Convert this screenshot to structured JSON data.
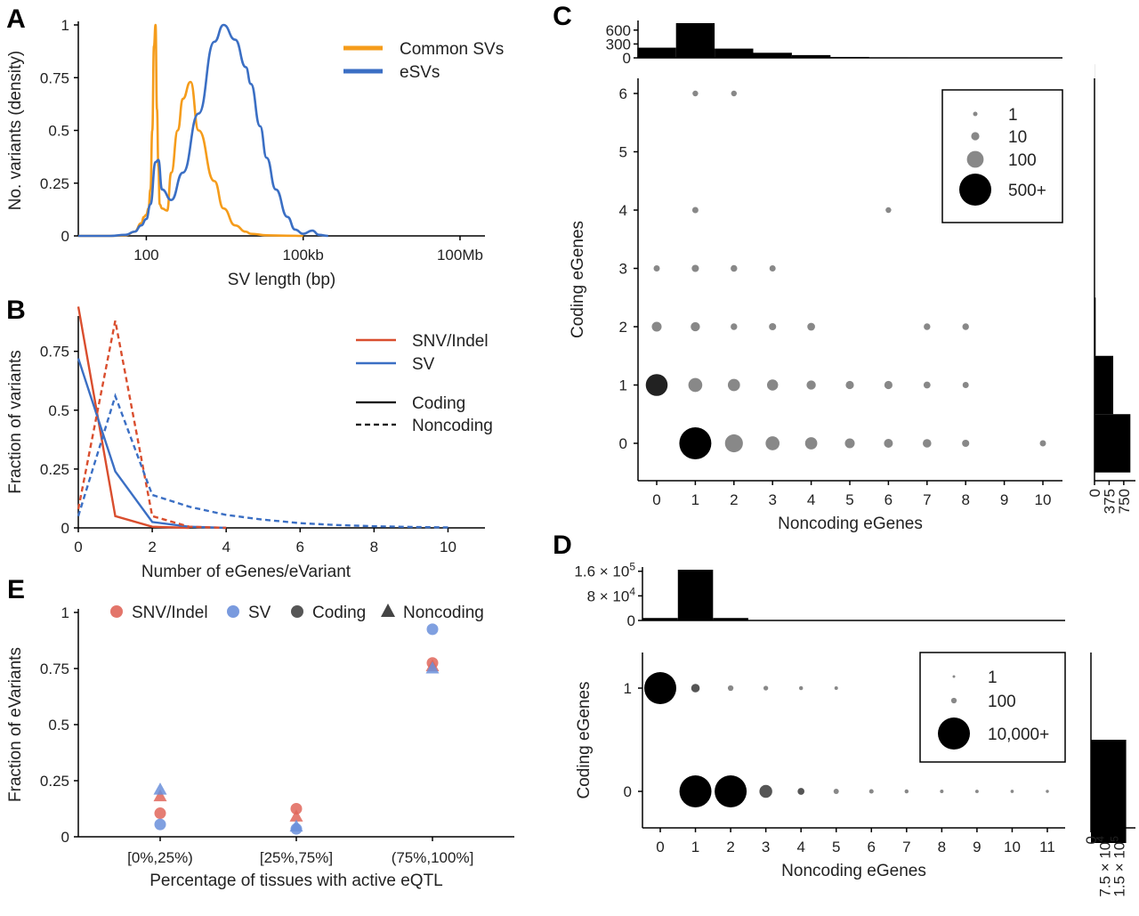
{
  "panels": {
    "A": {
      "label": "A",
      "chart_data": {
        "type": "line",
        "xlabel": "SV length (bp)",
        "ylabel": "No. variants (density)",
        "x_scale": "log10",
        "x_ticks": [
          "100",
          "100kb",
          "100Mb"
        ],
        "x_tick_values": [
          100,
          100000,
          100000000
        ],
        "y_ticks": [
          "0",
          "0.25",
          "0.5",
          "0.75",
          "1"
        ],
        "ylim": [
          0,
          1
        ],
        "legend_position": "top-right",
        "series": [
          {
            "name": "Common SVs",
            "color": "#F59C1B",
            "x": [
              5,
              20,
              40,
              60,
              80,
              90,
              100,
              110,
              120,
              130,
              140,
              150,
              160,
              170,
              180,
              200,
              250,
              300,
              400,
              500,
              700,
              1000,
              2000,
              3000,
              5000,
              8000,
              10000,
              20000,
              50000,
              100000
            ],
            "y": [
              0,
              0,
              0.003,
              0.02,
              0.06,
              0.09,
              0.1,
              0.13,
              0.22,
              0.5,
              0.9,
              1.0,
              0.6,
              0.33,
              0.15,
              0.13,
              0.12,
              0.3,
              0.5,
              0.65,
              0.73,
              0.5,
              0.26,
              0.13,
              0.05,
              0.02,
              0.01,
              0.003,
              0.001,
              0
            ]
          },
          {
            "name": "eSVs",
            "color": "#3B6FC4",
            "x": [
              5,
              20,
              40,
              60,
              80,
              100,
              120,
              150,
              170,
              200,
              300,
              500,
              1000,
              2000,
              3000,
              5000,
              8000,
              10000,
              15000,
              20000,
              30000,
              50000,
              70000,
              100000,
              150000,
              200000,
              300000
            ],
            "y": [
              0,
              0,
              0.005,
              0.02,
              0.05,
              0.08,
              0.15,
              0.35,
              0.36,
              0.22,
              0.17,
              0.3,
              0.58,
              0.92,
              1.0,
              0.93,
              0.8,
              0.72,
              0.52,
              0.37,
              0.22,
              0.09,
              0.03,
              0.01,
              0.025,
              0.005,
              0
            ]
          }
        ]
      }
    },
    "B": {
      "label": "B",
      "chart_data": {
        "type": "line",
        "xlabel": "Number of eGenes/eVariant",
        "ylabel": "Fraction of variants",
        "x_ticks": [
          "0",
          "2",
          "4",
          "6",
          "8",
          "10"
        ],
        "y_ticks": [
          "0",
          "0.25",
          "0.5",
          "0.75"
        ],
        "xlim": [
          0,
          11
        ],
        "ylim": [
          0,
          0.9
        ],
        "legend_position": "top-right",
        "legend_color": [
          {
            "name": "SNV/Indel",
            "color": "#D94E2E"
          },
          {
            "name": "SV",
            "color": "#3B6FC4"
          }
        ],
        "legend_linetype": [
          {
            "name": "Coding",
            "style": "solid"
          },
          {
            "name": "Noncoding",
            "style": "dashed"
          }
        ],
        "series": [
          {
            "variant": "SNV/Indel",
            "category": "Coding",
            "color": "#D94E2E",
            "dash": false,
            "x": [
              0,
              1,
              2,
              3
            ],
            "y": [
              0.94,
              0.05,
              0.005,
              0
            ]
          },
          {
            "variant": "SV",
            "category": "Coding",
            "color": "#3B6FC4",
            "dash": false,
            "x": [
              0,
              1,
              2,
              3,
              4
            ],
            "y": [
              0.72,
              0.24,
              0.025,
              0.005,
              0
            ]
          },
          {
            "variant": "SNV/Indel",
            "category": "Noncoding",
            "color": "#D94E2E",
            "dash": true,
            "x": [
              0,
              1,
              2,
              3,
              4
            ],
            "y": [
              0.08,
              0.88,
              0.05,
              0.005,
              0
            ]
          },
          {
            "variant": "SV",
            "category": "Noncoding",
            "color": "#3B6FC4",
            "dash": true,
            "x": [
              0,
              1,
              2,
              3,
              4,
              5,
              6,
              7,
              8,
              9,
              10
            ],
            "y": [
              0.05,
              0.56,
              0.14,
              0.09,
              0.055,
              0.035,
              0.02,
              0.012,
              0.007,
              0.004,
              0.002
            ]
          }
        ]
      }
    },
    "C": {
      "label": "C",
      "chart_data": {
        "type": "scatter",
        "xlabel": "Noncoding eGenes",
        "ylabel": "Coding eGenes",
        "x_ticks": [
          "0",
          "1",
          "2",
          "3",
          "4",
          "5",
          "6",
          "7",
          "8",
          "9",
          "10"
        ],
        "y_ticks": [
          "0",
          "1",
          "2",
          "3",
          "4",
          "5",
          "6"
        ],
        "size_legend": {
          "labels": [
            "1",
            "10",
            "100",
            "500+"
          ],
          "values": [
            1,
            10,
            100,
            500
          ]
        },
        "points": [
          {
            "x": 1,
            "y": 0,
            "n": 500
          },
          {
            "x": 2,
            "y": 0,
            "n": 120
          },
          {
            "x": 3,
            "y": 0,
            "n": 60
          },
          {
            "x": 4,
            "y": 0,
            "n": 40
          },
          {
            "x": 5,
            "y": 0,
            "n": 20
          },
          {
            "x": 6,
            "y": 0,
            "n": 14
          },
          {
            "x": 7,
            "y": 0,
            "n": 12
          },
          {
            "x": 8,
            "y": 0,
            "n": 6
          },
          {
            "x": 10,
            "y": 0,
            "n": 3
          },
          {
            "x": 0,
            "y": 1,
            "n": 200
          },
          {
            "x": 1,
            "y": 1,
            "n": 60
          },
          {
            "x": 2,
            "y": 1,
            "n": 40
          },
          {
            "x": 3,
            "y": 1,
            "n": 30
          },
          {
            "x": 4,
            "y": 1,
            "n": 16
          },
          {
            "x": 5,
            "y": 1,
            "n": 10
          },
          {
            "x": 6,
            "y": 1,
            "n": 10
          },
          {
            "x": 7,
            "y": 1,
            "n": 5
          },
          {
            "x": 8,
            "y": 1,
            "n": 3
          },
          {
            "x": 0,
            "y": 2,
            "n": 20
          },
          {
            "x": 1,
            "y": 2,
            "n": 16
          },
          {
            "x": 2,
            "y": 2,
            "n": 4
          },
          {
            "x": 3,
            "y": 2,
            "n": 6
          },
          {
            "x": 4,
            "y": 2,
            "n": 8
          },
          {
            "x": 7,
            "y": 2,
            "n": 4
          },
          {
            "x": 8,
            "y": 2,
            "n": 4
          },
          {
            "x": 0,
            "y": 3,
            "n": 3
          },
          {
            "x": 1,
            "y": 3,
            "n": 6
          },
          {
            "x": 2,
            "y": 3,
            "n": 4
          },
          {
            "x": 3,
            "y": 3,
            "n": 3
          },
          {
            "x": 1,
            "y": 4,
            "n": 3
          },
          {
            "x": 6,
            "y": 4,
            "n": 2
          },
          {
            "x": 1,
            "y": 6,
            "n": 2
          },
          {
            "x": 2,
            "y": 6,
            "n": 2
          }
        ],
        "top_histogram": {
          "x_ticks_labels": [
            "0",
            "300",
            "600"
          ],
          "values": [
            220,
            750,
            200,
            110,
            60,
            20,
            10,
            8,
            5,
            2,
            1
          ],
          "max": 750
        },
        "right_histogram": {
          "tick_labels": [
            "0",
            "375",
            "750"
          ],
          "values": [
            920,
            480,
            30,
            10,
            2,
            0,
            2
          ],
          "max": 1050
        }
      }
    },
    "D": {
      "label": "D",
      "chart_data": {
        "type": "scatter",
        "xlabel": "Noncoding eGenes",
        "ylabel": "Coding eGenes",
        "x_ticks": [
          "0",
          "1",
          "2",
          "3",
          "4",
          "5",
          "6",
          "7",
          "8",
          "9",
          "10",
          "11"
        ],
        "y_ticks": [
          "0",
          "1"
        ],
        "size_legend": {
          "labels": [
            "1",
            "100",
            "10,000+"
          ],
          "values": [
            1,
            100,
            10000
          ]
        },
        "points": [
          {
            "x": 0,
            "y": 1,
            "n": 10000
          },
          {
            "x": 1,
            "y": 1,
            "n": 400
          },
          {
            "x": 2,
            "y": 1,
            "n": 100
          },
          {
            "x": 3,
            "y": 1,
            "n": 50
          },
          {
            "x": 4,
            "y": 1,
            "n": 20
          },
          {
            "x": 5,
            "y": 1,
            "n": 10
          },
          {
            "x": 1,
            "y": 0,
            "n": 10000
          },
          {
            "x": 2,
            "y": 0,
            "n": 10000
          },
          {
            "x": 3,
            "y": 0,
            "n": 1200
          },
          {
            "x": 4,
            "y": 0,
            "n": 200
          },
          {
            "x": 5,
            "y": 0,
            "n": 80
          },
          {
            "x": 6,
            "y": 0,
            "n": 40
          },
          {
            "x": 7,
            "y": 0,
            "n": 20
          },
          {
            "x": 8,
            "y": 0,
            "n": 10
          },
          {
            "x": 9,
            "y": 0,
            "n": 8
          },
          {
            "x": 10,
            "y": 0,
            "n": 5
          },
          {
            "x": 11,
            "y": 0,
            "n": 3
          }
        ],
        "top_histogram": {
          "tick_labels": [
            "0",
            "8 × 10",
            "1.6 × 10"
          ],
          "tick_exponents": [
            "",
            "4",
            "5"
          ],
          "values": [
            8000,
            165000,
            8000,
            1000,
            300,
            100,
            60,
            30,
            20,
            10,
            5,
            3
          ],
          "max": 165000
        },
        "right_histogram": {
          "tick_labels": [
            "0",
            "7.5 × 10",
            "1.5 × 10"
          ],
          "tick_exponents": [
            "",
            "4",
            "5"
          ],
          "values": [
            190000,
            0
          ],
          "max": 240000
        }
      }
    },
    "E": {
      "label": "E",
      "chart_data": {
        "type": "scatter",
        "xlabel": "Percentage of tissues with active eQTL",
        "ylabel": "Fraction of eVariants",
        "categories": [
          "[0%,25%)",
          "[25%,75%]",
          "(75%,100%]"
        ],
        "y_ticks": [
          "0",
          "0.25",
          "0.5",
          "0.75",
          "1"
        ],
        "ylim": [
          0,
          1
        ],
        "legend": [
          {
            "name": "SNV/Indel",
            "color": "#E0665A",
            "shape": "circle"
          },
          {
            "name": "SV",
            "color": "#6A8FDA",
            "shape": "circle"
          },
          {
            "name": "Coding",
            "color": "#444444",
            "shape": "circle"
          },
          {
            "name": "Noncoding",
            "color": "#444444",
            "shape": "triangle"
          }
        ],
        "points": [
          {
            "category": 0,
            "variant": "SNV/Indel",
            "type": "Coding",
            "y": 0.105
          },
          {
            "category": 0,
            "variant": "SV",
            "type": "Coding",
            "y": 0.055
          },
          {
            "category": 0,
            "variant": "SNV/Indel",
            "type": "Noncoding",
            "y": 0.18
          },
          {
            "category": 0,
            "variant": "SV",
            "type": "Noncoding",
            "y": 0.21
          },
          {
            "category": 1,
            "variant": "SNV/Indel",
            "type": "Coding",
            "y": 0.125
          },
          {
            "category": 1,
            "variant": "SV",
            "type": "Coding",
            "y": 0.035
          },
          {
            "category": 1,
            "variant": "SNV/Indel",
            "type": "Noncoding",
            "y": 0.09
          },
          {
            "category": 1,
            "variant": "SV",
            "type": "Noncoding",
            "y": 0.045
          },
          {
            "category": 2,
            "variant": "SNV/Indel",
            "type": "Coding",
            "y": 0.775
          },
          {
            "category": 2,
            "variant": "SV",
            "type": "Coding",
            "y": 0.925
          },
          {
            "category": 2,
            "variant": "SNV/Indel",
            "type": "Noncoding",
            "y": 0.76
          },
          {
            "category": 2,
            "variant": "SV",
            "type": "Noncoding",
            "y": 0.75
          }
        ]
      }
    }
  }
}
